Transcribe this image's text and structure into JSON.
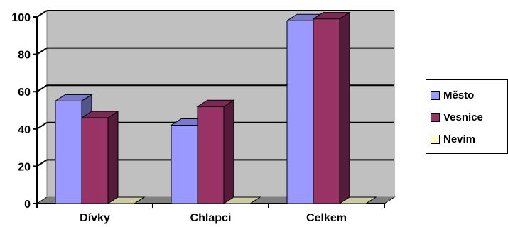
{
  "chart_data": {
    "type": "bar",
    "categories": [
      "Dívky",
      "Chlapci",
      "Celkem"
    ],
    "series": [
      {
        "name": "Město",
        "values": [
          55,
          42,
          98
        ],
        "color": "#9999ff"
      },
      {
        "name": "Vesnice",
        "values": [
          46,
          52,
          99
        ],
        "color": "#993366"
      },
      {
        "name": "Nevím",
        "values": [
          0,
          0,
          0
        ],
        "color": "#ffffcc"
      }
    ],
    "yticks": [
      "0",
      "20",
      "40",
      "60",
      "80",
      "100"
    ],
    "ylim": [
      0,
      100
    ],
    "grid": true,
    "style": "3d-clustered-column",
    "plot_wall_color": "#c0c0c0",
    "legend_position": "right"
  }
}
